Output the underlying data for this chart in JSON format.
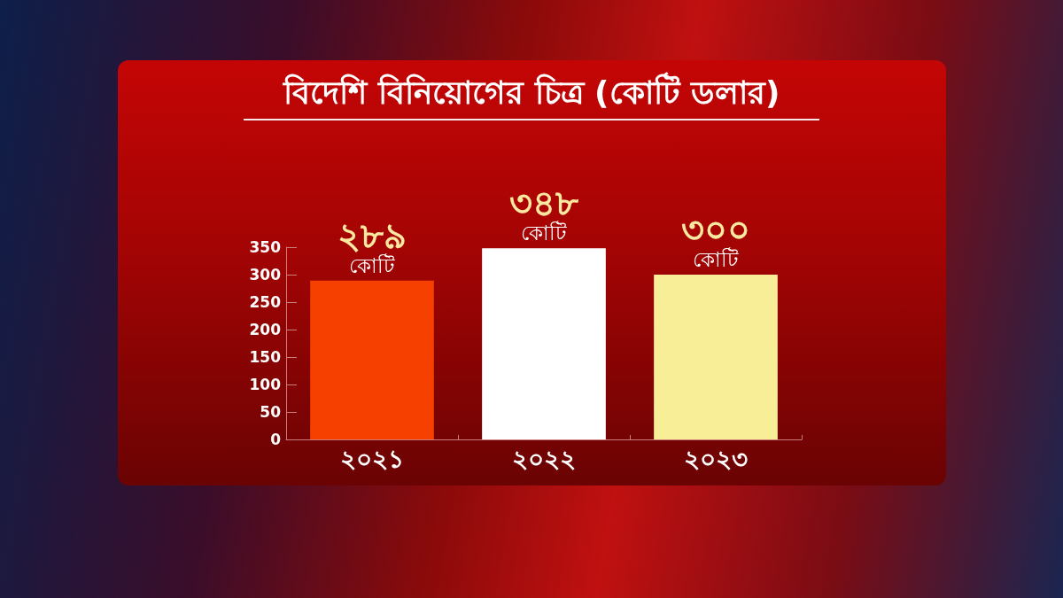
{
  "chart_data": {
    "type": "bar",
    "title": "বিদেশি বিনিয়োগের চিত্র (কোটি ডলার)",
    "categories": [
      "২০২১",
      "২০২২",
      "২০২৩"
    ],
    "values": [
      289,
      348,
      300
    ],
    "colors": [
      "#f54000",
      "#ffffff",
      "#f8ee98"
    ],
    "value_labels": [
      "২৮৯\nকোটি",
      "৩৪৮\nকোটি",
      "৩০০\nকোটি"
    ],
    "ylim": [
      0,
      350
    ],
    "yticks": [
      0,
      50,
      100,
      150,
      200,
      250,
      300,
      350
    ],
    "grid": false
  }
}
